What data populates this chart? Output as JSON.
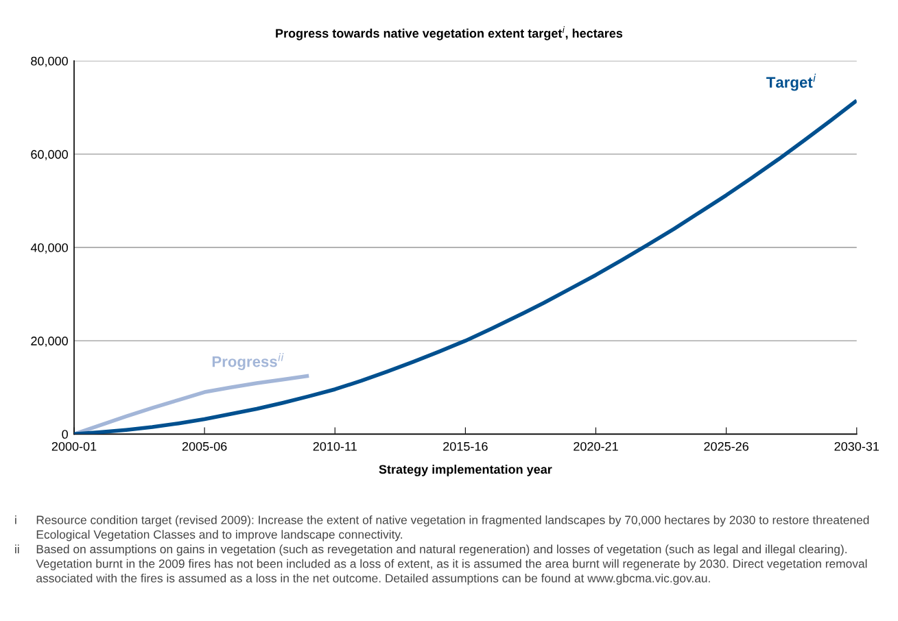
{
  "chart_data": {
    "type": "line",
    "title": "Progress towards native vegetation extent target$^{i}$, hectares",
    "xlabel": "Strategy implementation year",
    "categories": [
      "2000-01",
      null,
      null,
      null,
      null,
      "2005-06",
      null,
      null,
      null,
      null,
      "2010-11",
      null,
      null,
      null,
      null,
      "2015-16",
      null,
      null,
      null,
      null,
      "2020-21",
      null,
      null,
      null,
      null,
      "2025-26",
      null,
      null,
      null,
      null,
      "2030-31"
    ],
    "series": [
      {
        "name": "Target$^{i}$",
        "color": "#00508f",
        "values": [
          0,
          400,
          900,
          1500,
          2300,
          3200,
          4300,
          5400,
          6700,
          8100,
          9600,
          11400,
          13400,
          15500,
          17700,
          20000,
          22600,
          25300,
          28100,
          31100,
          34100,
          37300,
          40600,
          44000,
          47600,
          51200,
          55000,
          58900,
          63000,
          67200,
          71500
        ]
      },
      {
        "name": "Progress$^{ii}$",
        "color": "#a3b6d8",
        "values": [
          0,
          1900,
          3800,
          5600,
          7300,
          9000,
          10000,
          10900,
          11700,
          12500,
          null,
          null,
          null,
          null,
          null,
          null,
          null,
          null,
          null,
          null,
          null,
          null,
          null,
          null,
          null,
          null,
          null,
          null,
          null,
          null,
          null
        ]
      }
    ],
    "ylim": [
      0,
      80000
    ],
    "yticks": [
      {
        "value": 0,
        "label": "0"
      },
      {
        "value": 20000,
        "label": "20,000"
      },
      {
        "value": 40000,
        "label": "40,000"
      },
      {
        "value": 60000,
        "label": "60,000"
      },
      {
        "value": 80000,
        "label": "80,000"
      }
    ],
    "grid": "y",
    "legend": false,
    "marker": "none",
    "line_style": "solid",
    "annotations": [
      "i Resource condition target (revised 2009): Increase the extent of native vegetation in fragmented landscapes by 70,000 hectares by 2030 to restore threatened Ecological Vegetation Classes and to improve landscape connectivity.",
      "ii Based on assumptions on gains in vegetation (such as revegetation and natural regeneration) and losses of vegetation (such as legal and illegal clearing). Vegetation burnt in the 2009 fires has not been included as a loss of extent, as it is assumed the area burnt will regenerate by 2030. Direct vegetation removal associated with the fires is assumed as a loss in the net outcome. Detailed assumptions can be found at www.gbcma.vic.gov.au."
    ]
  }
}
